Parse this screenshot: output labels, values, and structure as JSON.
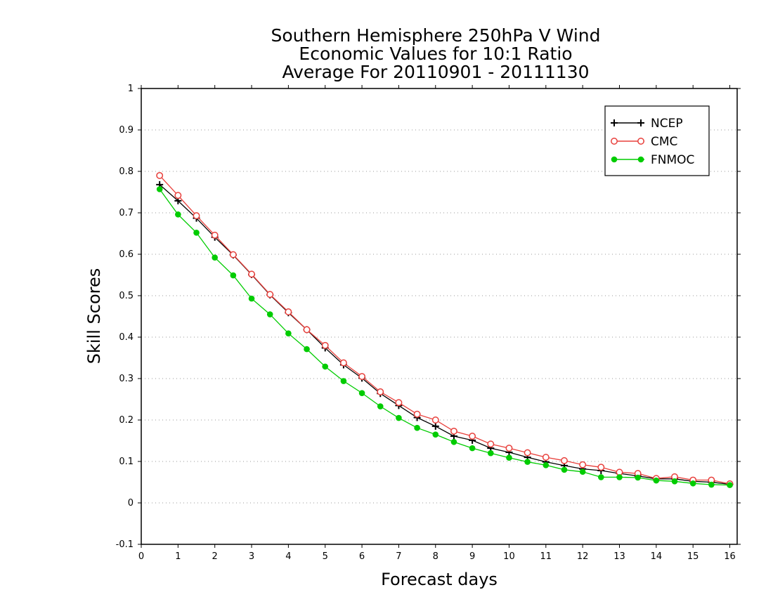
{
  "chart_data": {
    "type": "line",
    "title_lines": [
      "Southern Hemisphere 250hPa V Wind",
      "Economic Values for 10:1 Ratio",
      "Average For 20110901 - 20111130"
    ],
    "xlabel": "Forecast days",
    "ylabel": "Skill Scores",
    "xlim": [
      0,
      16.2
    ],
    "ylim": [
      -0.1,
      1
    ],
    "xticks": [
      0,
      1,
      2,
      3,
      4,
      5,
      6,
      7,
      8,
      9,
      10,
      11,
      12,
      13,
      14,
      15,
      16
    ],
    "xtick_labels": [
      "0",
      "1",
      "2",
      "3",
      "4",
      "5",
      "6",
      "7",
      "8",
      "9",
      "10",
      "11",
      "12",
      "13",
      "14",
      "15",
      "16"
    ],
    "yticks": [
      -0.1,
      0,
      0.1,
      0.2,
      0.3,
      0.4,
      0.5,
      0.6,
      0.7,
      0.8,
      0.9,
      1
    ],
    "ytick_labels": [
      "-0.1",
      "0",
      "0.1",
      "0.2",
      "0.3",
      "0.4",
      "0.5",
      "0.6",
      "0.7",
      "0.8",
      "0.9",
      "1"
    ],
    "grid": true,
    "legend_position": "top-right",
    "x": [
      0.5,
      1,
      1.5,
      2,
      2.5,
      3,
      3.5,
      4,
      4.5,
      5,
      5.5,
      6,
      6.5,
      7,
      7.5,
      8,
      8.5,
      9,
      9.5,
      10,
      10.5,
      11,
      11.5,
      12,
      12.5,
      13,
      13.5,
      14,
      14.5,
      15,
      15.5,
      16
    ],
    "series": [
      {
        "name": "NCEP",
        "color": "#000000",
        "marker": "plus",
        "values": [
          0.768,
          0.729,
          0.687,
          0.641,
          0.598,
          0.551,
          0.502,
          0.459,
          0.418,
          0.374,
          0.333,
          0.301,
          0.264,
          0.235,
          0.206,
          0.185,
          0.161,
          0.151,
          0.132,
          0.122,
          0.11,
          0.099,
          0.09,
          0.082,
          0.078,
          0.071,
          0.065,
          0.058,
          0.058,
          0.052,
          0.05,
          0.045
        ]
      },
      {
        "name": "CMC",
        "color": "#e8403c",
        "marker": "open-circle",
        "values": [
          0.79,
          0.742,
          0.693,
          0.646,
          0.599,
          0.552,
          0.503,
          0.461,
          0.418,
          0.38,
          0.338,
          0.305,
          0.268,
          0.242,
          0.214,
          0.2,
          0.173,
          0.161,
          0.142,
          0.132,
          0.121,
          0.11,
          0.102,
          0.092,
          0.086,
          0.074,
          0.071,
          0.059,
          0.063,
          0.055,
          0.055,
          0.046
        ]
      },
      {
        "name": "FNMOC",
        "color": "#00cc00",
        "marker": "filled-circle",
        "values": [
          0.757,
          0.696,
          0.652,
          0.592,
          0.549,
          0.493,
          0.455,
          0.409,
          0.371,
          0.329,
          0.294,
          0.265,
          0.233,
          0.205,
          0.181,
          0.165,
          0.147,
          0.132,
          0.12,
          0.109,
          0.099,
          0.091,
          0.08,
          0.075,
          0.062,
          0.062,
          0.061,
          0.054,
          0.052,
          0.047,
          0.044,
          0.043
        ]
      }
    ]
  }
}
